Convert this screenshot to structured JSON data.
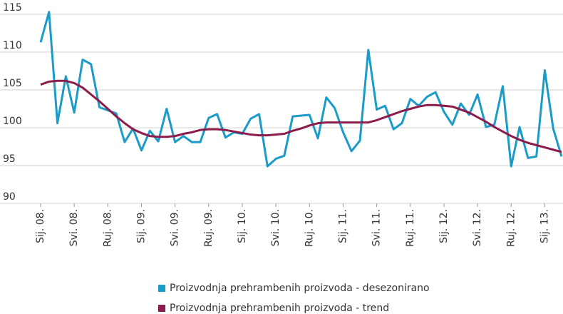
{
  "chart_data": {
    "type": "line",
    "categories": [
      "Sij. 08.",
      null,
      null,
      null,
      "Svi. 08.",
      null,
      null,
      null,
      "Ruj. 08.",
      null,
      null,
      null,
      "Sij. 09.",
      null,
      null,
      null,
      "Svi. 09.",
      null,
      null,
      null,
      "Ruj. 09.",
      null,
      null,
      null,
      "Sij. 10.",
      null,
      null,
      null,
      "Svi. 10.",
      null,
      null,
      null,
      "Ruj. 10.",
      null,
      null,
      null,
      "Sij. 11.",
      null,
      null,
      null,
      "Svi. 11.",
      null,
      null,
      null,
      "Ruj. 11.",
      null,
      null,
      null,
      "Sij. 12.",
      null,
      null,
      null,
      "Svi. 12.",
      null,
      null,
      null,
      "Ruj. 12.",
      null,
      null,
      null,
      "Sij. 13.",
      null,
      null
    ],
    "series": [
      {
        "name": "Proizvodnja prehrambenih proizvoda - desezonirano",
        "color": "#1b9bc8",
        "values": [
          111.3,
          115.3,
          100.6,
          106.8,
          102.0,
          109.0,
          108.4,
          102.7,
          102.3,
          101.9,
          98.1,
          99.9,
          97.0,
          99.6,
          98.2,
          102.5,
          98.1,
          98.9,
          98.1,
          98.1,
          101.3,
          101.8,
          98.7,
          99.4,
          99.2,
          101.2,
          101.8,
          94.9,
          95.9,
          96.3,
          101.5,
          101.6,
          101.7,
          98.6,
          104.0,
          102.6,
          99.4,
          96.9,
          98.3,
          110.3,
          102.4,
          102.9,
          99.8,
          100.6,
          103.8,
          102.9,
          104.1,
          104.7,
          102.1,
          100.4,
          103.2,
          101.7,
          104.4,
          100.1,
          100.4,
          105.5,
          94.9,
          100.1,
          96.0,
          96.2,
          107.6,
          99.9,
          96.2
        ]
      },
      {
        "name": "Proizvodnja prehrambenih proizvoda - trend",
        "color": "#8c1c4c",
        "values": [
          105.7,
          106.1,
          106.2,
          106.2,
          105.9,
          105.3,
          104.4,
          103.5,
          102.5,
          101.5,
          100.6,
          99.8,
          99.3,
          98.9,
          98.8,
          98.8,
          98.9,
          99.2,
          99.4,
          99.7,
          99.8,
          99.8,
          99.7,
          99.5,
          99.3,
          99.1,
          99.0,
          99.0,
          99.1,
          99.2,
          99.6,
          99.9,
          100.3,
          100.6,
          100.7,
          100.7,
          100.7,
          100.7,
          100.7,
          100.7,
          101.0,
          101.4,
          101.8,
          102.2,
          102.5,
          102.8,
          103.0,
          103.0,
          102.9,
          102.8,
          102.4,
          102.0,
          101.4,
          100.8,
          100.1,
          99.5,
          98.9,
          98.4,
          98.0,
          97.7,
          97.4,
          97.1,
          96.8
        ]
      }
    ],
    "ylim": [
      90,
      115
    ],
    "yticks": [
      90,
      95,
      100,
      105,
      110,
      115
    ],
    "grid": true,
    "legend": "bottom"
  }
}
